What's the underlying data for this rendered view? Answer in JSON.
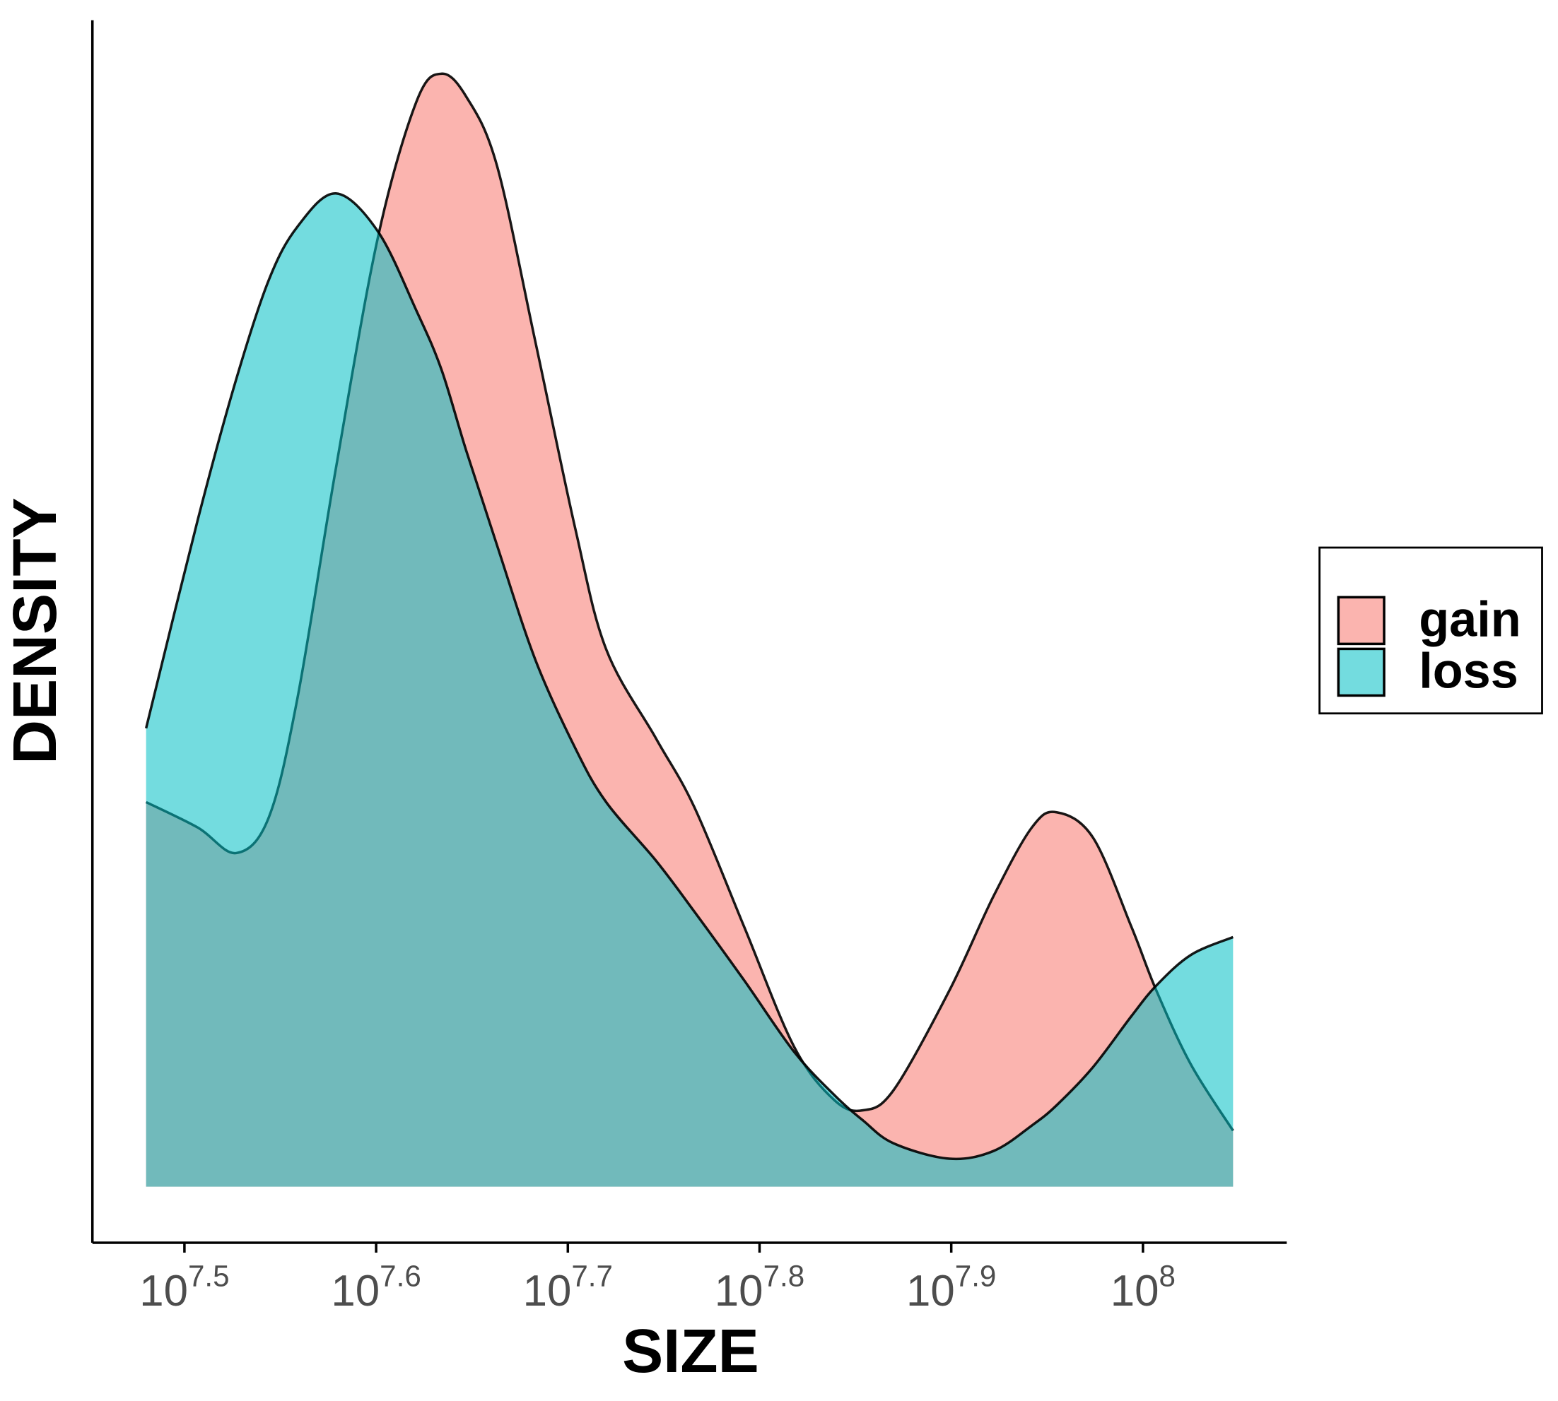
{
  "chart_data": {
    "type": "density",
    "x_label": "SIZE",
    "y_label": "DENSITY",
    "x_log": true,
    "xlim": [
      7.452,
      8.075
    ],
    "ylim": [
      -0.22,
      4.58
    ],
    "xticks": [
      {
        "value": 7.5,
        "label": "10^7.5"
      },
      {
        "value": 7.6,
        "label": "10^7.6"
      },
      {
        "value": 7.7,
        "label": "10^7.7"
      },
      {
        "value": 7.8,
        "label": "10^7.8"
      },
      {
        "value": 7.9,
        "label": "10^7.9"
      },
      {
        "value": 8,
        "label": "10^8"
      }
    ],
    "legend_position": "right",
    "x": [
      7.48,
      7.507,
      7.527,
      7.544,
      7.559,
      7.579,
      7.601,
      7.621,
      7.634,
      7.647,
      7.663,
      7.683,
      7.704,
      7.72,
      7.746,
      7.766,
      7.792,
      7.818,
      7.839,
      7.854,
      7.87,
      7.899,
      7.922,
      7.942,
      7.955,
      7.974,
      7.994,
      8.007,
      8.025,
      8.047
    ],
    "series": [
      {
        "name": "gain",
        "color": "#F8766D",
        "values": [
          1.51,
          1.41,
          1.31,
          1.45,
          1.92,
          2.82,
          3.73,
          4.26,
          4.37,
          4.28,
          4.01,
          3.32,
          2.58,
          2.11,
          1.76,
          1.49,
          1.02,
          0.55,
          0.34,
          0.3,
          0.38,
          0.77,
          1.14,
          1.41,
          1.47,
          1.37,
          1.02,
          0.77,
          0.48,
          0.22
        ]
      },
      {
        "name": "loss",
        "color": "#00BFC4",
        "values": [
          1.8,
          2.62,
          3.17,
          3.56,
          3.77,
          3.9,
          3.75,
          3.44,
          3.21,
          2.89,
          2.52,
          2.07,
          1.72,
          1.51,
          1.28,
          1.08,
          0.81,
          0.53,
          0.36,
          0.26,
          0.17,
          0.11,
          0.14,
          0.24,
          0.32,
          0.47,
          0.67,
          0.79,
          0.91,
          0.98
        ]
      }
    ]
  }
}
